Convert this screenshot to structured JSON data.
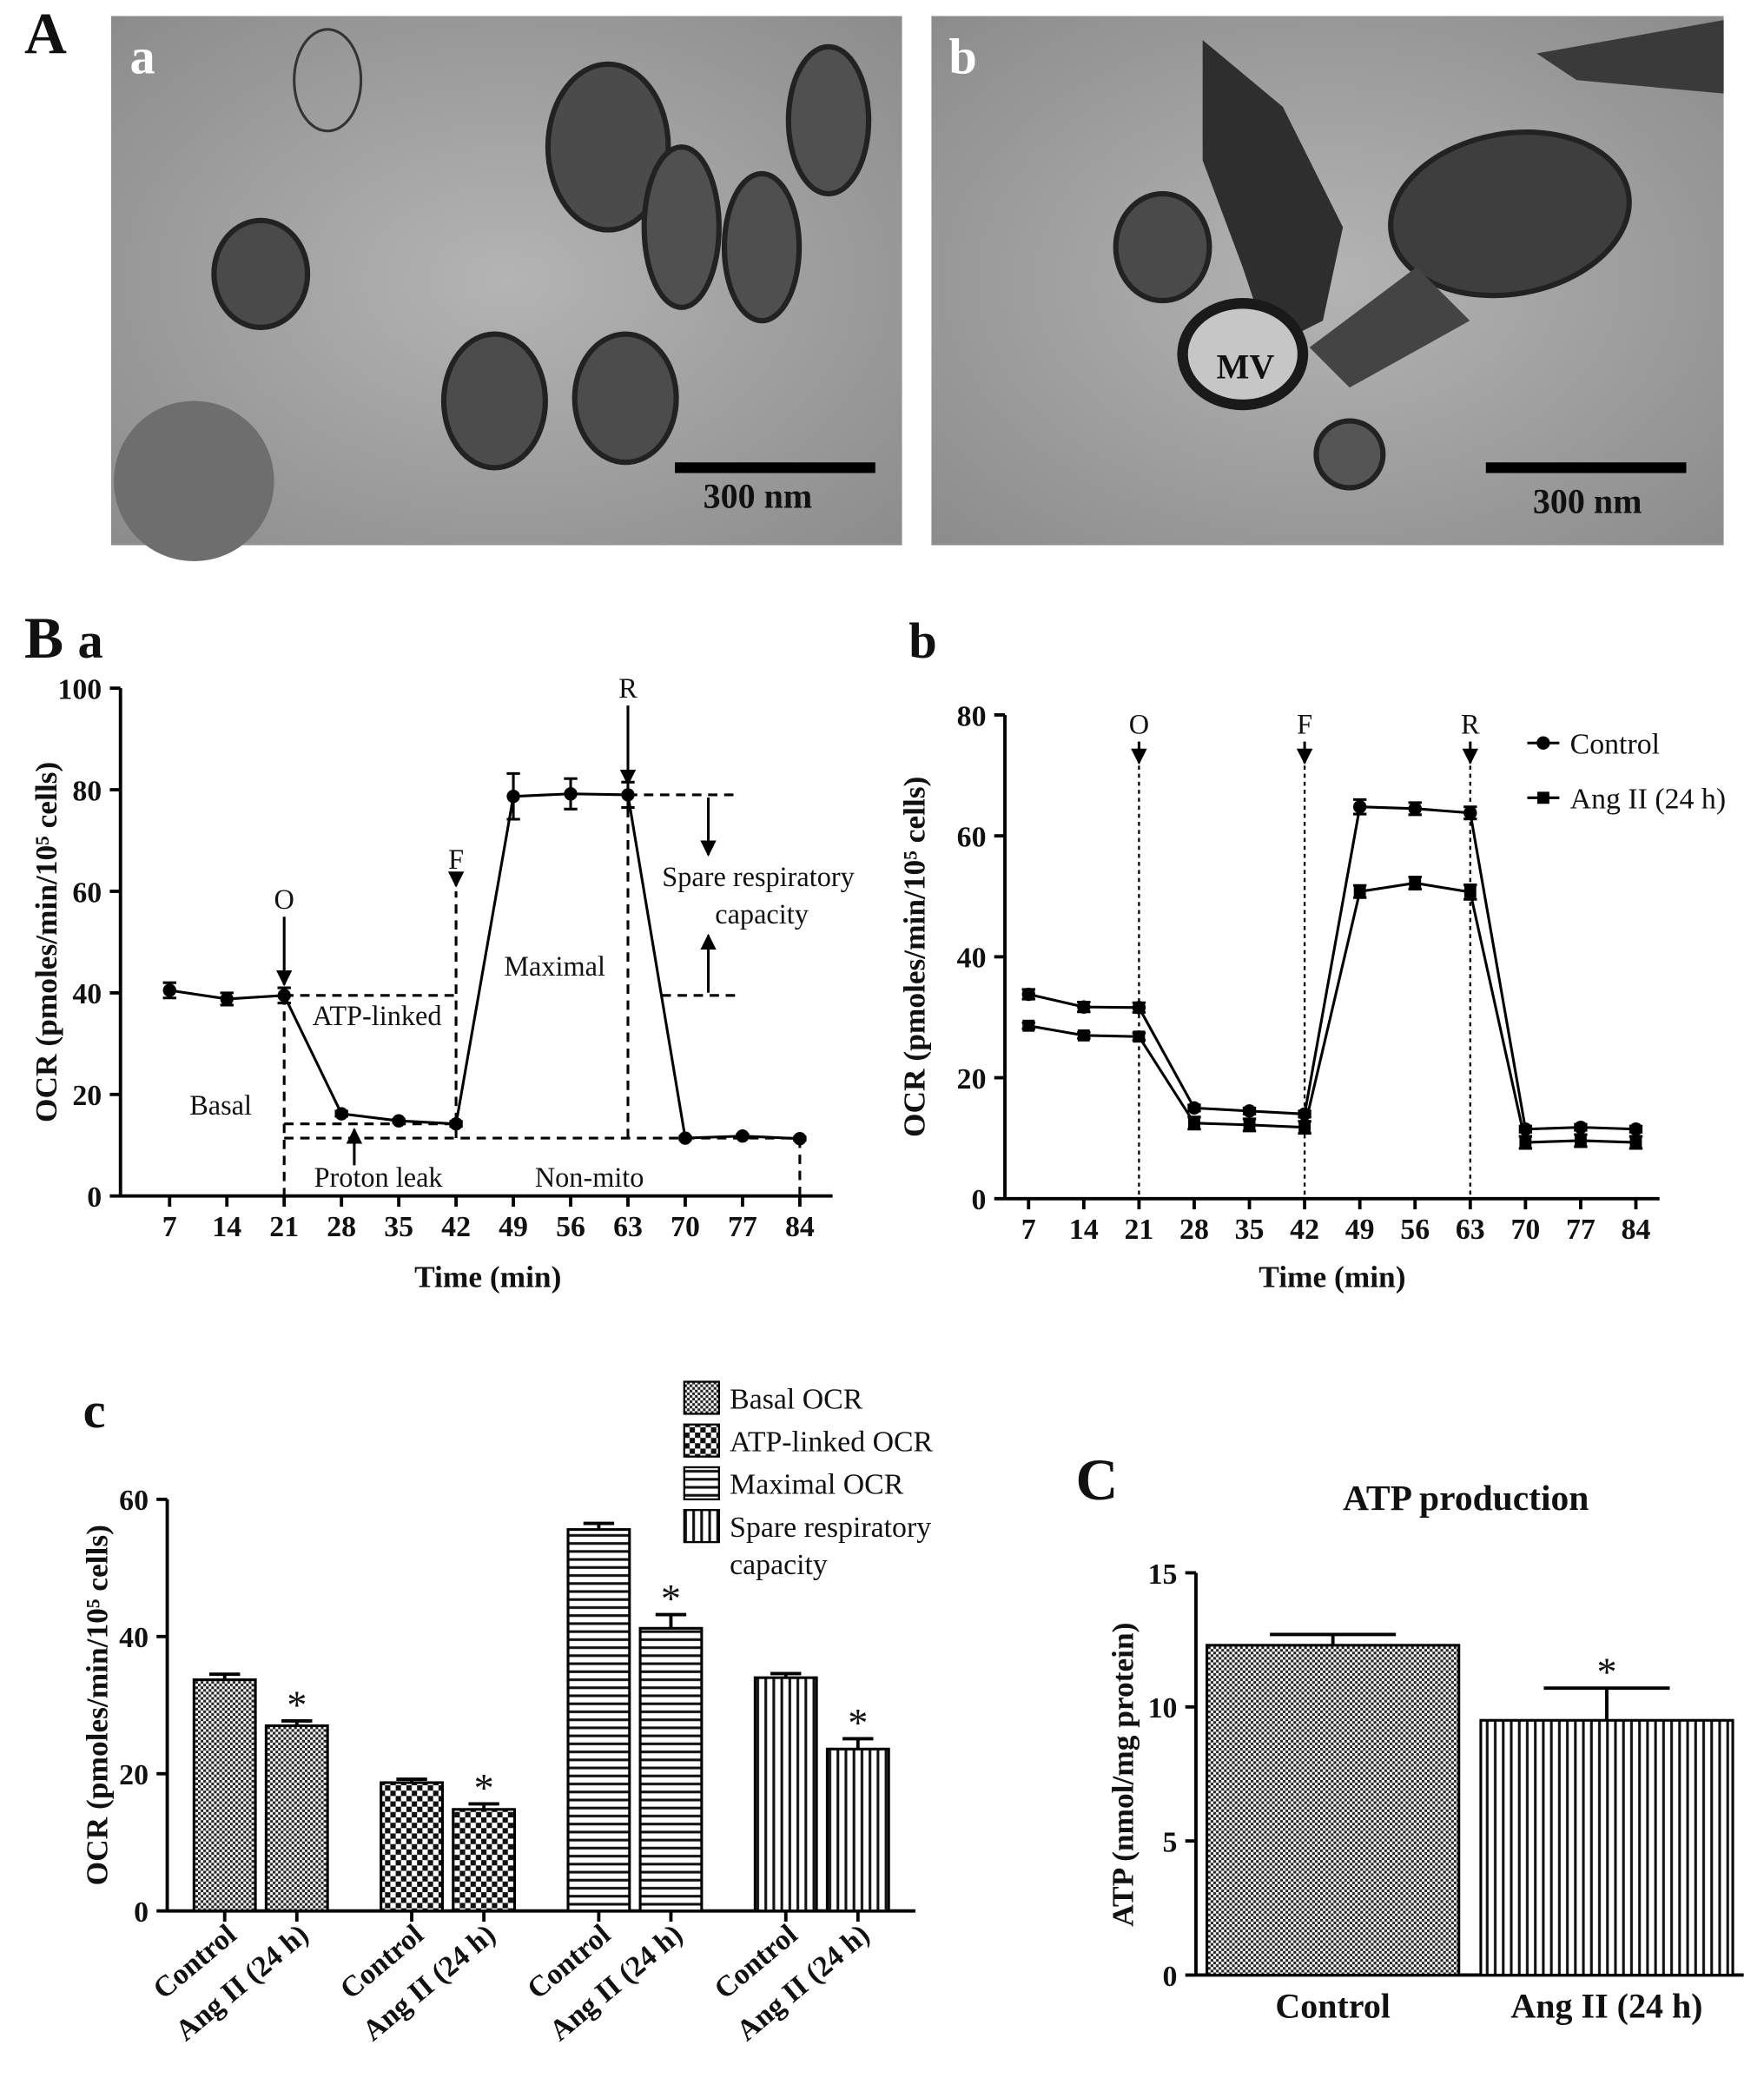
{
  "panel_labels": [
    "A",
    "B",
    "C"
  ],
  "micrographs": [
    {
      "label": "a",
      "scale_bar": "300 nm"
    },
    {
      "label": "b",
      "scale_bar": "300 nm",
      "annotation": "MV"
    }
  ],
  "chart_data": [
    {
      "type": "line",
      "label": "a",
      "xlabel": "Time (min)",
      "ylabel": "OCR (pmoles/min/10⁵ cells)",
      "x": [
        7,
        14,
        21,
        28,
        35,
        42,
        49,
        56,
        63,
        70,
        77,
        84
      ],
      "xlim": [
        1,
        88
      ],
      "xticks": [
        7,
        14,
        21,
        28,
        35,
        42,
        49,
        56,
        63,
        70,
        77,
        84
      ],
      "ylim": [
        0,
        100
      ],
      "yticks": [
        0,
        20,
        40,
        60,
        80,
        100
      ],
      "series": [
        {
          "color": "#000000",
          "marker": "circle",
          "values": [
            40.5,
            38.8,
            39.5,
            16.2,
            14.8,
            14.2,
            78.7,
            79.2,
            79,
            11.4,
            11.8,
            11.3
          ],
          "errors": [
            1.5,
            1.2,
            1.5,
            0.5,
            0.3,
            0.5,
            4.5,
            3,
            2.5,
            0.3,
            0.3,
            0.3
          ]
        }
      ],
      "injections": [
        {
          "label": "O",
          "time": 21
        },
        {
          "label": "F",
          "time": 42
        },
        {
          "label": "R",
          "time": 63
        }
      ],
      "annotations": [
        "Basal",
        "ATP-linked",
        "Maximal",
        "Proton leak",
        "Non-mito",
        "Spare respiratory capacity"
      ]
    },
    {
      "type": "line",
      "label": "b",
      "xlabel": "Time (min)",
      "ylabel": "OCR (pmoles/min/10⁵ cells)",
      "x": [
        7,
        14,
        21,
        28,
        35,
        42,
        49,
        56,
        63,
        70,
        77,
        84
      ],
      "xlim": [
        4,
        87
      ],
      "xticks": [
        7,
        14,
        21,
        28,
        35,
        42,
        49,
        56,
        63,
        70,
        77,
        84
      ],
      "ylim": [
        0,
        80
      ],
      "yticks": [
        0,
        20,
        40,
        60,
        80
      ],
      "series": [
        {
          "name": "Control",
          "color": "#000000",
          "marker": "circle",
          "values": [
            33.8,
            31.7,
            31.6,
            15,
            14.5,
            14,
            64.8,
            64.5,
            63.8,
            11.5,
            11.8,
            11.5
          ],
          "errors": [
            0.8,
            0.8,
            0.8,
            0.5,
            0.5,
            0.5,
            1.2,
            1,
            1,
            0.5,
            0.5,
            0.5
          ]
        },
        {
          "name": "Ang II (24 h)",
          "color": "#000000",
          "marker": "square",
          "values": [
            28.6,
            27,
            26.8,
            12.5,
            12.2,
            11.8,
            50.8,
            52.2,
            50.7,
            9.3,
            9.6,
            9.3
          ],
          "errors": [
            0.5,
            0.5,
            0.6,
            1,
            1,
            1,
            1,
            1,
            1.2,
            1,
            1,
            1
          ]
        }
      ],
      "injections": [
        {
          "label": "O",
          "time": 21
        },
        {
          "label": "F",
          "time": 42
        },
        {
          "label": "R",
          "time": 63
        }
      ]
    },
    {
      "type": "bar",
      "label": "c",
      "ylabel": "OCR (pmoles/min/10⁵ cells)",
      "categories": [
        "Control",
        "Ang II (24 h)"
      ],
      "ylim": [
        0,
        60
      ],
      "yticks": [
        0,
        20,
        40,
        60
      ],
      "significance_marker": "*",
      "series": [
        {
          "name": "Basal OCR",
          "pattern": "crosshatch",
          "values": [
            33.7,
            27
          ],
          "errors": [
            0.8,
            0.7
          ],
          "significant": [
            false,
            true
          ]
        },
        {
          "name": "ATP-linked OCR",
          "pattern": "checker",
          "values": [
            18.7,
            14.8
          ],
          "errors": [
            0.5,
            0.8
          ],
          "significant": [
            false,
            true
          ]
        },
        {
          "name": "Maximal OCR",
          "pattern": "horizontal",
          "values": [
            55.6,
            41.2
          ],
          "errors": [
            0.9,
            2
          ],
          "significant": [
            false,
            true
          ]
        },
        {
          "name": "Spare respiratory capacity",
          "pattern": "vertical",
          "values": [
            34,
            23.6
          ],
          "errors": [
            0.6,
            1.5
          ],
          "significant": [
            false,
            true
          ]
        }
      ]
    },
    {
      "type": "bar",
      "label": "C",
      "title": "ATP production",
      "ylabel": "ATP (nmol/mg protein)",
      "categories": [
        "Control",
        "Ang II (24 h)"
      ],
      "values": [
        12.3,
        9.5
      ],
      "errors": [
        0.4,
        1.2
      ],
      "patterns": [
        "crosshatch",
        "vertical"
      ],
      "significant": [
        false,
        true
      ],
      "significance_marker": "*",
      "ylim": [
        0,
        15
      ],
      "yticks": [
        0,
        5,
        10,
        15
      ]
    }
  ]
}
